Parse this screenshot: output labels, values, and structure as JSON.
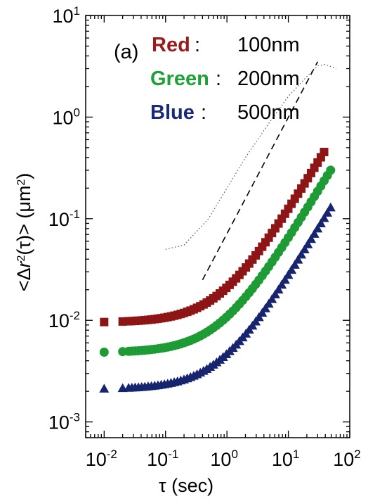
{
  "chart_data": {
    "type": "scatter",
    "panel_label": "(a)",
    "xlabel": "τ (sec)",
    "ylabel_parts": {
      "pre": "<Δ",
      "var": "r",
      "sup": "2",
      "post": "(τ)> (μm",
      "sup2": "2",
      "end": ")"
    },
    "x_scale": "log",
    "y_scale": "log",
    "xlim": [
      0.005,
      100
    ],
    "ylim": [
      0.0007,
      10
    ],
    "x_ticks": [
      0.01,
      0.1,
      1,
      10,
      100
    ],
    "x_tick_labels": [
      {
        "base": "10",
        "exp": "-2"
      },
      {
        "base": "10",
        "exp": "-1"
      },
      {
        "base": "10",
        "exp": "0"
      },
      {
        "base": "10",
        "exp": "1"
      },
      {
        "base": "10",
        "exp": "2"
      }
    ],
    "y_ticks": [
      0.001,
      0.01,
      0.1,
      1,
      10
    ],
    "y_tick_labels": [
      {
        "base": "10",
        "exp": "-3"
      },
      {
        "base": "10",
        "exp": "-2"
      },
      {
        "base": "10",
        "exp": "-1"
      },
      {
        "base": "10",
        "exp": "0"
      },
      {
        "base": "10",
        "exp": "1"
      }
    ],
    "grid": false,
    "legend": [
      {
        "name": "Red",
        "colon": ":",
        "size": "100nm",
        "color": "#9b1a1c"
      },
      {
        "name": "Green",
        "colon": ":",
        "size": "200nm",
        "color": "#1fa038"
      },
      {
        "name": "Blue",
        "colon": ":",
        "size": "500nm",
        "color": "#1b2a78"
      }
    ],
    "series": [
      {
        "name": "Red",
        "marker": "square",
        "color": "#8e1516",
        "plateau": 0.0095,
        "D": 0.0116,
        "tmax": 40
      },
      {
        "name": "Green",
        "marker": "circle",
        "color": "#1e9b35",
        "plateau": 0.0048,
        "D": 0.00605,
        "tmax": 50
      },
      {
        "name": "Blue",
        "marker": "triangle",
        "color": "#17246e",
        "plateau": 0.0021,
        "D": 0.0026,
        "tmax": 50
      }
    ],
    "reference_lines": [
      {
        "style": "dashed",
        "color": "#000000",
        "x": [
          0.4,
          30
        ],
        "y": [
          0.025,
          3.5
        ]
      },
      {
        "style": "dotted",
        "color": "#555555",
        "x": [
          0.1,
          0.2,
          0.5,
          1,
          2,
          5,
          10,
          20,
          30,
          40,
          60
        ],
        "y": [
          0.05,
          0.055,
          0.1,
          0.2,
          0.4,
          0.9,
          1.6,
          2.5,
          3.2,
          3.3,
          3.0
        ]
      }
    ]
  }
}
